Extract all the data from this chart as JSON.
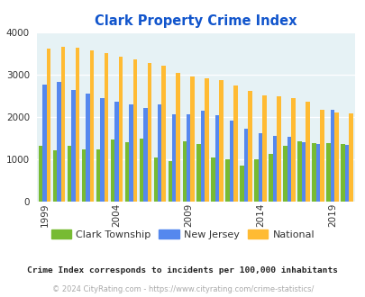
{
  "title": "Clark Property Crime Index",
  "title_color": "#1155cc",
  "years": [
    1999,
    2000,
    2001,
    2002,
    2003,
    2004,
    2005,
    2006,
    2007,
    2008,
    2009,
    2010,
    2011,
    2012,
    2013,
    2014,
    2015,
    2016,
    2017,
    2018,
    2019,
    2020
  ],
  "clark": [
    1330,
    1220,
    1330,
    1250,
    1250,
    1480,
    1420,
    1500,
    1050,
    960,
    1430,
    1360,
    1040,
    1010,
    850,
    1000,
    1130,
    1330,
    1430,
    1390,
    1390,
    1360
  ],
  "nj": [
    2780,
    2830,
    2650,
    2560,
    2460,
    2360,
    2300,
    2220,
    2300,
    2080,
    2080,
    2150,
    2060,
    1930,
    1730,
    1620,
    1560,
    1550,
    1410,
    1380,
    2180,
    1350
  ],
  "national": [
    3620,
    3660,
    3640,
    3590,
    3510,
    3430,
    3370,
    3290,
    3220,
    3050,
    2960,
    2930,
    2880,
    2760,
    2620,
    2510,
    2490,
    2460,
    2360,
    2170,
    2110,
    2100
  ],
  "clark_color": "#77bb33",
  "nj_color": "#5588ee",
  "national_color": "#ffbb33",
  "bg_color": "#e6f2f5",
  "ylim": [
    0,
    4000
  ],
  "yticks": [
    0,
    1000,
    2000,
    3000,
    4000
  ],
  "xtick_years": [
    1999,
    2004,
    2009,
    2014,
    2019
  ],
  "legend_labels": [
    "Clark Township",
    "New Jersey",
    "National"
  ],
  "footnote1": "Crime Index corresponds to incidents per 100,000 inhabitants",
  "footnote2": "© 2024 CityRating.com - https://www.cityrating.com/crime-statistics/",
  "footnote1_color": "#222222",
  "footnote2_color": "#aaaaaa",
  "legend_text_color": "#333333"
}
